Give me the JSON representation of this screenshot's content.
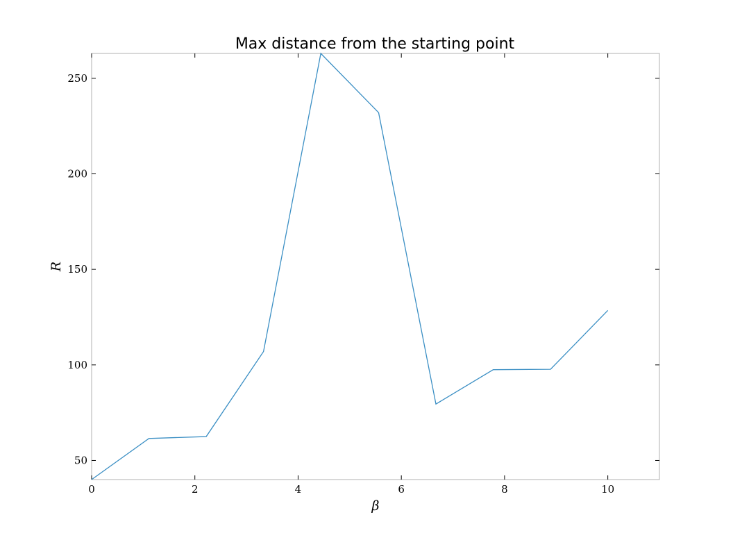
{
  "chart_data": {
    "type": "line",
    "title": "Max distance from the starting point",
    "xlabel": "β",
    "ylabel": "R",
    "xlim": [
      0,
      11
    ],
    "ylim": [
      40,
      263
    ],
    "xticks": [
      0,
      2,
      4,
      6,
      8,
      10
    ],
    "yticks": [
      50,
      100,
      150,
      200,
      250
    ],
    "grid": false,
    "legend": "none",
    "colors": {
      "line": "#3b8fc4",
      "frame": "#b0b0b0"
    },
    "series": [
      {
        "x": [
          0,
          1.11,
          2.22,
          3.33,
          4.44,
          5.56,
          6.67,
          7.78,
          8.89,
          10
        ],
        "y": [
          40,
          61.5,
          62.5,
          107,
          263,
          232,
          79.5,
          97.5,
          97.7,
          128.5
        ]
      }
    ]
  }
}
